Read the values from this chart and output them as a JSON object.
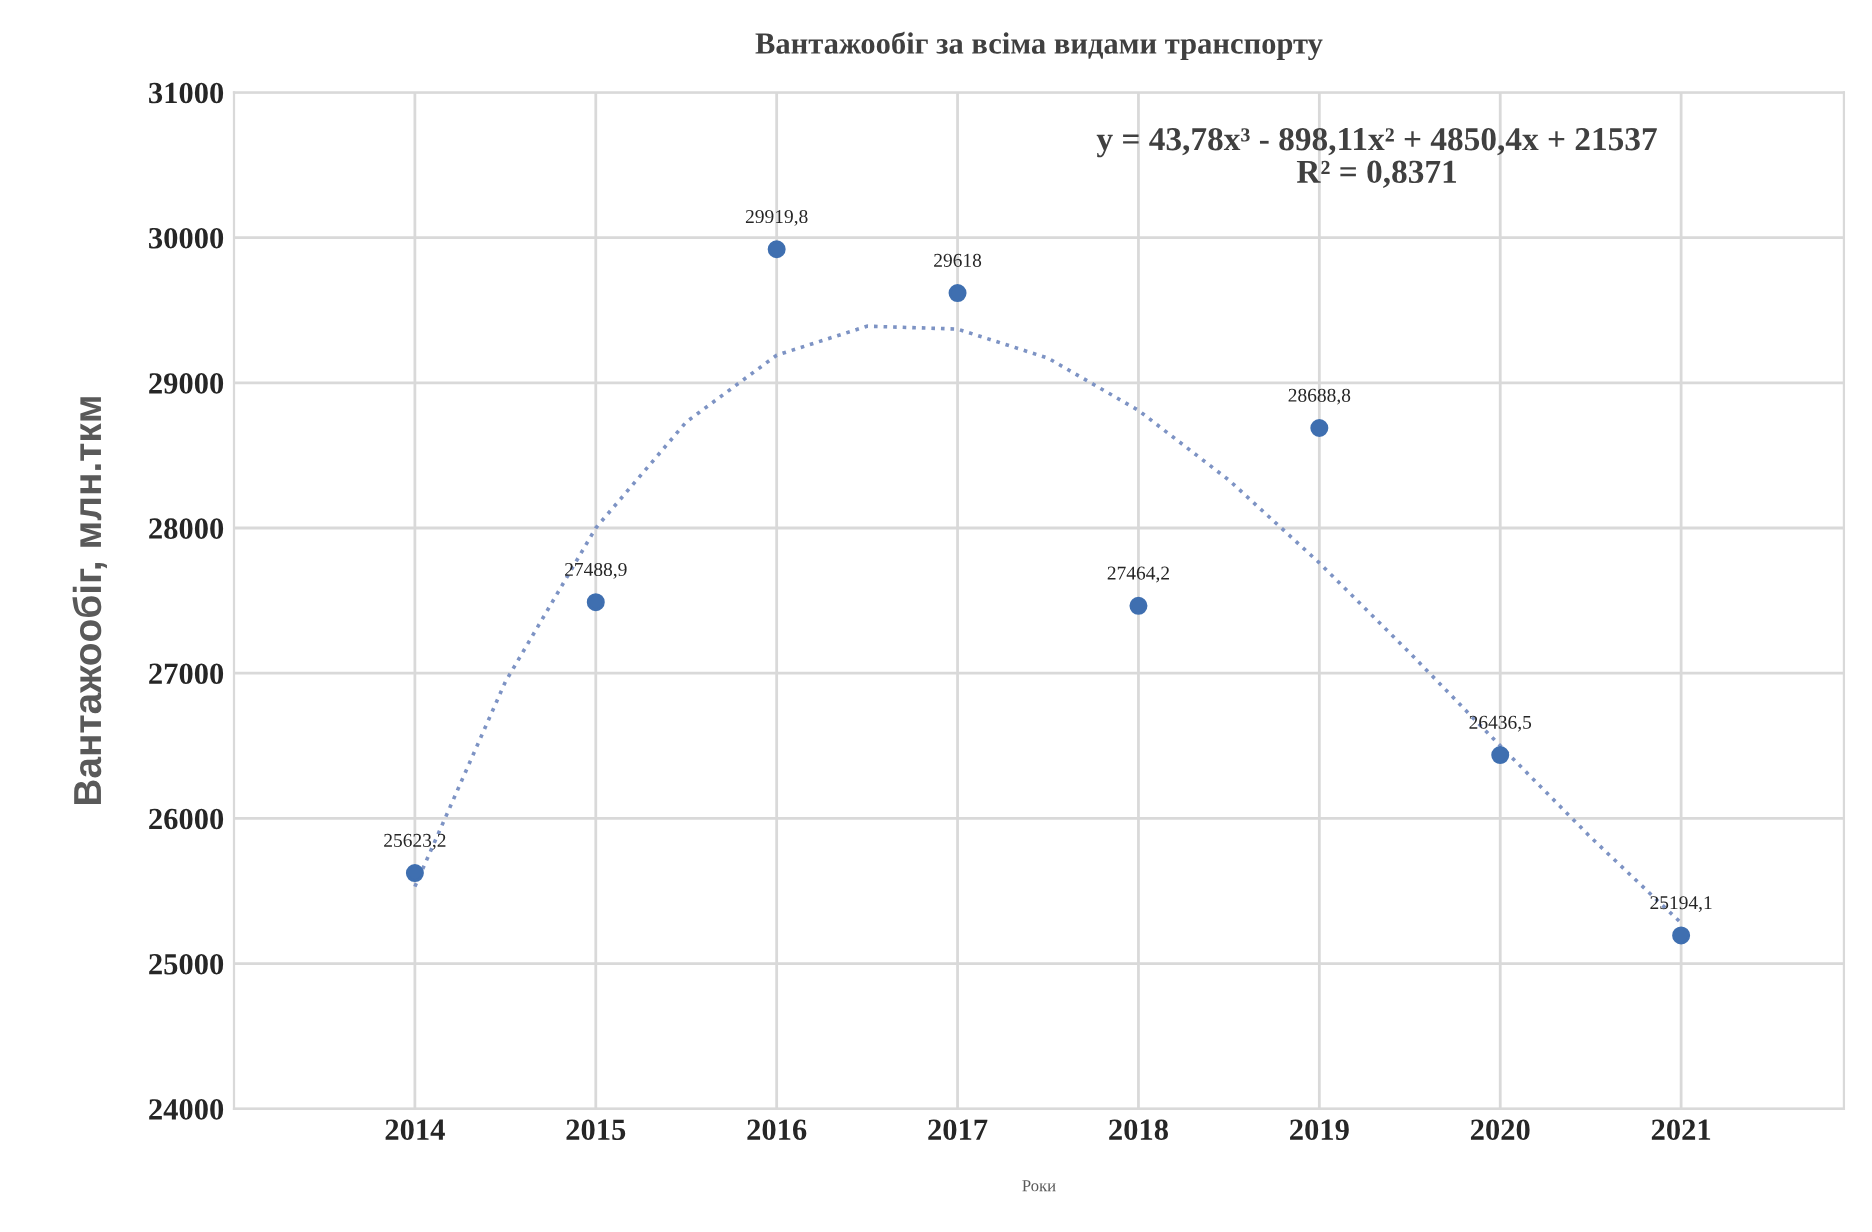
{
  "chart_data": {
    "type": "scatter",
    "title": "Вантажообіг за всіма видами транспорту",
    "xlabel": "Роки",
    "ylabel": "Вантажообіг, млн.ткм",
    "x": [
      2014,
      2015,
      2016,
      2017,
      2018,
      2019,
      2020,
      2021
    ],
    "series": [
      {
        "color": "#3f6fb0",
        "marker": "circle",
        "values": [
          25623.2,
          27488.9,
          29919.8,
          29618,
          27464.2,
          28688.8,
          26436.5,
          25194.1
        ],
        "value_labels": [
          "25623,2",
          "27488,9",
          "29919,8",
          "29618",
          "27464,2",
          "28688,8",
          "26436,5",
          "25194,1"
        ]
      },
      {
        "type": "line",
        "color": "#7d93c4",
        "line_style": "dotted",
        "marker": "none",
        "x": [
          2014,
          2014.5,
          2015,
          2015.5,
          2016,
          2016.5,
          2017,
          2017.5,
          2018,
          2018.5,
          2019,
          2019.5,
          2020,
          2020.5,
          2021
        ],
        "values": [
          25530,
          26940,
          28000,
          28730,
          29190,
          29390,
          29370,
          29170,
          28810,
          28330,
          27760,
          27140,
          26500,
          25870,
          25280
        ]
      }
    ],
    "xlim": [
      2013,
      2021.9
    ],
    "xticks": [
      2014,
      2015,
      2016,
      2017,
      2018,
      2019,
      2020,
      2021
    ],
    "ylim": [
      24000,
      31000
    ],
    "yticks": [
      24000,
      25000,
      26000,
      27000,
      28000,
      29000,
      30000,
      31000
    ],
    "grid": true,
    "legend": false,
    "annotations": [
      "y = 43,78x³ - 898,11x² + 4850,4x + 21537\nR² = 0,8371"
    ]
  }
}
